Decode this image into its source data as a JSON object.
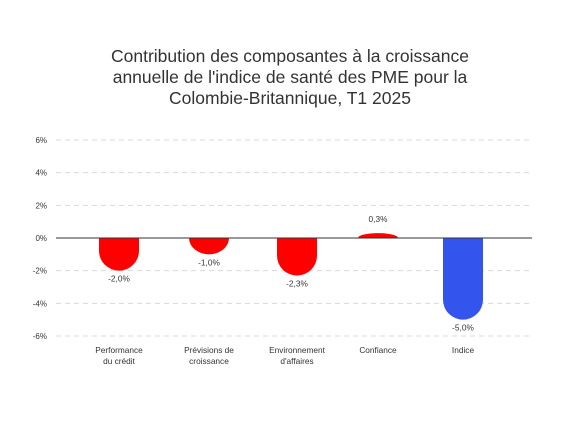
{
  "chart_data": {
    "type": "bar",
    "title_lines": [
      "Contribution des composantes à la croissance",
      "annuelle de l'indice de santé des PME pour la",
      "Colombie-Britannique, T1 2025"
    ],
    "categories": [
      [
        "Performance",
        "du crédit"
      ],
      [
        "Prévisions de",
        "croissance"
      ],
      [
        "Environnement",
        "d'affaires"
      ],
      [
        "Confiance"
      ],
      [
        "Indice"
      ]
    ],
    "values": [
      -2.0,
      -1.0,
      -2.3,
      0.3,
      -5.0
    ],
    "data_labels": [
      "-2,0%",
      "-1,0%",
      "-2,3%",
      "0,3%",
      "-5,0%"
    ],
    "ylim": [
      -6,
      6
    ],
    "yticks": [
      6,
      4,
      2,
      0,
      -2,
      -4,
      -6
    ],
    "ytick_labels": [
      "6%",
      "4%",
      "2%",
      "0%",
      "-2%",
      "-4%",
      "-6%"
    ],
    "bar_colors": [
      "#ff0000",
      "#ff0000",
      "#ff0000",
      "#ff0000",
      "#3355ee"
    ],
    "grid": "horizontal dashed",
    "legend": "none"
  }
}
